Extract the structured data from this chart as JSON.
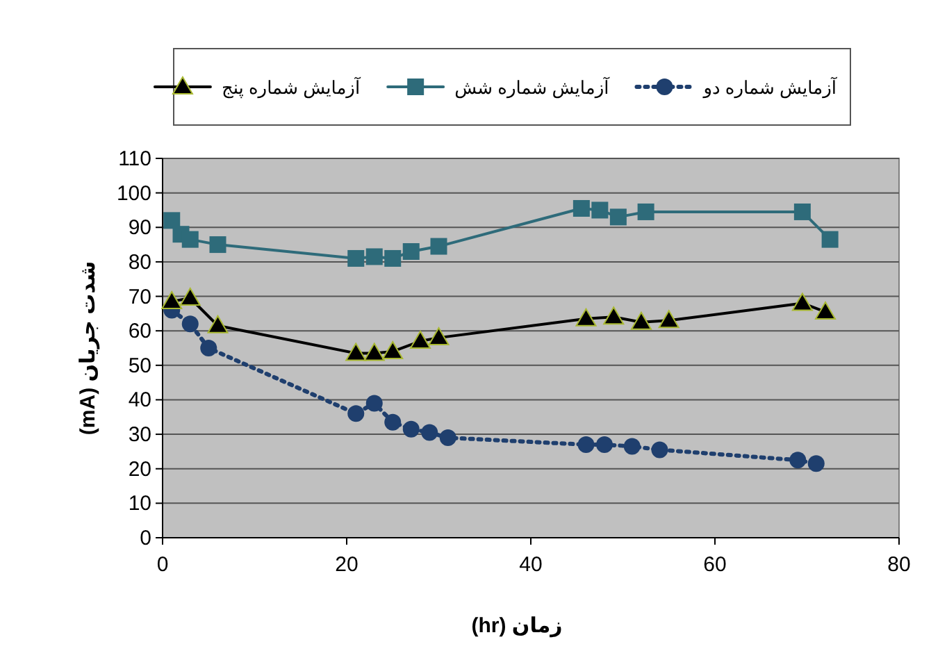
{
  "chart_data": {
    "type": "line",
    "xlabel": "زمان (hr)",
    "ylabel": "شدت جریان (mA)",
    "xlim": [
      0,
      80
    ],
    "xticks": [
      0,
      20,
      40,
      60,
      80
    ],
    "ylim": [
      0,
      110
    ],
    "yticks": [
      0,
      10,
      20,
      30,
      40,
      50,
      60,
      70,
      80,
      90,
      100,
      110
    ],
    "grid": "y",
    "legend": "top",
    "series": [
      {
        "name": "آزمایش شماره دو",
        "color": "#1f3f6e",
        "marker": "circle",
        "line_style": "dotted",
        "x": [
          1,
          3,
          5,
          21,
          23,
          25,
          27,
          29,
          31,
          46,
          48,
          51,
          54,
          69,
          71
        ],
        "values": [
          66,
          62,
          55,
          36,
          39,
          33.5,
          31.5,
          30.5,
          29,
          27,
          27,
          26.5,
          25.5,
          22.5,
          21.5
        ]
      },
      {
        "name": "آزمایش شماره شش",
        "color": "#2e6b7a",
        "marker": "square",
        "line_style": "solid",
        "x": [
          1,
          2,
          3,
          6,
          21,
          23,
          25,
          27,
          30,
          45.5,
          47.5,
          49.5,
          52.5,
          69.5,
          72.5
        ],
        "values": [
          92,
          88,
          86.5,
          85,
          81,
          81.5,
          81,
          83,
          84.5,
          95.5,
          95,
          93,
          94.5,
          94.5,
          86.5
        ]
      },
      {
        "name": "آزمایش شماره پنج",
        "color": "#000000",
        "marker": "triangle",
        "line_style": "solid",
        "x": [
          1,
          3,
          6,
          21,
          23,
          25,
          28,
          30,
          46,
          49,
          52,
          55,
          69.5,
          72
        ],
        "values": [
          68.5,
          69.5,
          61.5,
          53.5,
          53.5,
          54,
          57,
          58,
          63.5,
          64,
          62.5,
          63,
          68,
          65.5
        ]
      }
    ]
  }
}
